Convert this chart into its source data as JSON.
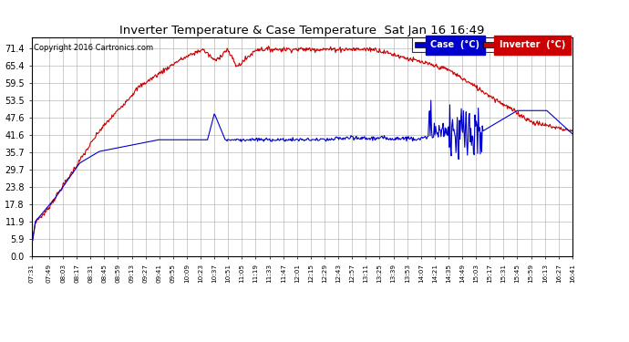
{
  "title": "Inverter Temperature & Case Temperature  Sat Jan 16 16:49",
  "copyright": "Copyright 2016 Cartronics.com",
  "background_color": "#ffffff",
  "plot_bg_color": "#ffffff",
  "grid_color": "#aaaaaa",
  "case_color": "#0000cc",
  "inverter_color": "#cc0000",
  "legend_case_bg": "#0000cc",
  "legend_inverter_bg": "#cc0000",
  "legend_case_label": "Case  (°C)",
  "legend_inverter_label": "Inverter  (°C)",
  "yticks": [
    0.0,
    5.9,
    11.9,
    17.8,
    23.8,
    29.7,
    35.7,
    41.6,
    47.6,
    53.5,
    59.5,
    65.4,
    71.4
  ],
  "ylim": [
    0.0,
    75.0
  ],
  "xtick_labels": [
    "07:31",
    "07:49",
    "08:03",
    "08:17",
    "08:31",
    "08:45",
    "08:59",
    "09:13",
    "09:27",
    "09:41",
    "09:55",
    "10:09",
    "10:23",
    "10:37",
    "10:51",
    "11:05",
    "11:19",
    "11:33",
    "11:47",
    "12:01",
    "12:15",
    "12:29",
    "12:43",
    "12:57",
    "13:11",
    "13:25",
    "13:39",
    "13:53",
    "14:07",
    "14:21",
    "14:35",
    "14:49",
    "15:03",
    "15:17",
    "15:31",
    "15:45",
    "15:59",
    "16:13",
    "16:27",
    "16:41"
  ]
}
